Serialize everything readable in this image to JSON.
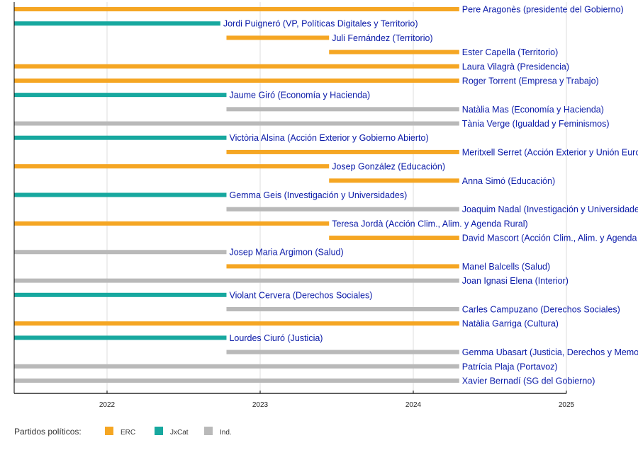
{
  "chart_data": {
    "type": "timeline",
    "x_ticks": [
      "2022",
      "2023",
      "2024",
      "2025"
    ],
    "xlim": [
      2021.394,
      2025.0
    ],
    "grid": true,
    "legend": {
      "title": "Partidos políticos:",
      "placement": "bottom-left",
      "entries": [
        {
          "key": "ERC",
          "label": "ERC",
          "color": "#f5a623"
        },
        {
          "key": "JxCat",
          "label": "JxCat",
          "color": "#17a89f"
        },
        {
          "key": "Ind",
          "label": "Ind.",
          "color": "#b9b9b9"
        }
      ]
    },
    "rows": [
      {
        "label": "Pere Aragonès (presidente del Gobierno)",
        "party": "ERC",
        "start": 2021.394,
        "end": 2024.3
      },
      {
        "label": "Jordi Puigneró (VP, Políticas Digitales y Territorio)",
        "party": "JxCat",
        "start": 2021.394,
        "end": 2022.74
      },
      {
        "label": "Juli Fernández (Territorio)",
        "party": "ERC",
        "start": 2022.78,
        "end": 2023.45
      },
      {
        "label": "Ester Capella (Territorio)",
        "party": "ERC",
        "start": 2023.45,
        "end": 2024.3
      },
      {
        "label": "Laura Vilagrà (Presidencia)",
        "party": "ERC",
        "start": 2021.394,
        "end": 2024.3
      },
      {
        "label": "Roger Torrent (Empresa y Trabajo)",
        "party": "ERC",
        "start": 2021.394,
        "end": 2024.3
      },
      {
        "label": "Jaume Giró (Economía y Hacienda)",
        "party": "JxCat",
        "start": 2021.394,
        "end": 2022.78
      },
      {
        "label": "Natàlia Mas (Economía y Hacienda)",
        "party": "Ind",
        "start": 2022.78,
        "end": 2024.3
      },
      {
        "label": "Tània Verge (Igualdad y Feminismos)",
        "party": "Ind",
        "start": 2021.394,
        "end": 2024.3
      },
      {
        "label": "Victòria Alsina (Acción Exterior y Gobierno Abierto)",
        "party": "JxCat",
        "start": 2021.394,
        "end": 2022.78
      },
      {
        "label": "Meritxell Serret (Acción Exterior y Unión Europea)",
        "party": "ERC",
        "start": 2022.78,
        "end": 2024.3
      },
      {
        "label": "Josep González (Educación)",
        "party": "ERC",
        "start": 2021.394,
        "end": 2023.45
      },
      {
        "label": "Anna Simó (Educación)",
        "party": "ERC",
        "start": 2023.45,
        "end": 2024.3
      },
      {
        "label": "Gemma Geis (Investigación y Universidades)",
        "party": "JxCat",
        "start": 2021.394,
        "end": 2022.78
      },
      {
        "label": "Joaquim Nadal (Investigación y Universidades)",
        "party": "Ind",
        "start": 2022.78,
        "end": 2024.3
      },
      {
        "label": "Teresa Jordà (Acción Clim., Alim. y Agenda Rural)",
        "party": "ERC",
        "start": 2021.394,
        "end": 2023.45
      },
      {
        "label": "David Mascort (Acción Clim., Alim. y Agenda Rural)",
        "party": "ERC",
        "start": 2023.45,
        "end": 2024.3
      },
      {
        "label": "Josep Maria Argimon (Salud)",
        "party": "Ind",
        "start": 2021.394,
        "end": 2022.78
      },
      {
        "label": "Manel Balcells (Salud)",
        "party": "ERC",
        "start": 2022.78,
        "end": 2024.3
      },
      {
        "label": "Joan Ignasi Elena (Interior)",
        "party": "Ind",
        "start": 2021.394,
        "end": 2024.3
      },
      {
        "label": "Violant Cervera (Derechos Sociales)",
        "party": "JxCat",
        "start": 2021.394,
        "end": 2022.78
      },
      {
        "label": "Carles Campuzano (Derechos Sociales)",
        "party": "Ind",
        "start": 2022.78,
        "end": 2024.3
      },
      {
        "label": "Natàlia Garriga (Cultura)",
        "party": "ERC",
        "start": 2021.394,
        "end": 2024.3
      },
      {
        "label": "Lourdes Ciuró (Justicia)",
        "party": "JxCat",
        "start": 2021.394,
        "end": 2022.78
      },
      {
        "label": "Gemma Ubasart (Justicia, Derechos y Memoria)",
        "party": "Ind",
        "start": 2022.78,
        "end": 2024.3
      },
      {
        "label": "Patrícia Plaja (Portavoz)",
        "party": "Ind",
        "start": 2021.394,
        "end": 2024.3
      },
      {
        "label": "Xavier Bernadí (SG del Gobierno)",
        "party": "Ind",
        "start": 2021.394,
        "end": 2024.3
      }
    ]
  }
}
